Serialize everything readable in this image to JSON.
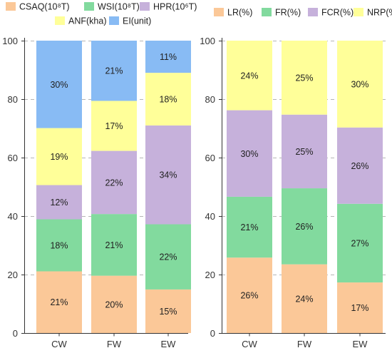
{
  "chart_data": [
    {
      "type": "bar",
      "stacked": true,
      "categories": [
        "CW",
        "FW",
        "EW"
      ],
      "ylim": [
        0,
        100
      ],
      "yticks": [
        0,
        20,
        40,
        60,
        80,
        100
      ],
      "grid": "horizontal dashed",
      "legend_position": "top",
      "series": [
        {
          "name": "CSAQ(10⁸T)",
          "color": "#FBC898",
          "values": [
            21.1,
            19.6,
            14.9
          ],
          "labels": [
            "21%",
            "20%",
            "15%"
          ]
        },
        {
          "name": "WSI(10⁸T)",
          "color": "#82DA9E",
          "values": [
            17.8,
            21.1,
            22.3
          ],
          "labels": [
            "18%",
            "21%",
            "22%"
          ]
        },
        {
          "name": "HPR(10⁶T)",
          "color": "#C6B1DB",
          "values": [
            11.7,
            21.6,
            33.8
          ],
          "labels": [
            "12%",
            "22%",
            "34%"
          ]
        },
        {
          "name": "ANF(kha)",
          "color": "#FFFF99",
          "values": [
            19.5,
            17.1,
            18.0
          ],
          "labels": [
            "19%",
            "17%",
            "18%"
          ]
        },
        {
          "name": "EI(unit)",
          "color": "#88BBF4",
          "values": [
            29.9,
            20.6,
            11.0
          ],
          "labels": [
            "30%",
            "21%",
            "11%"
          ]
        }
      ]
    },
    {
      "type": "bar",
      "stacked": true,
      "categories": [
        "CW",
        "FW",
        "EW"
      ],
      "ylim": [
        0,
        100
      ],
      "yticks": [
        0,
        20,
        40,
        60,
        80,
        100
      ],
      "grid": "horizontal dashed",
      "legend_position": "top",
      "series": [
        {
          "name": "LR(%)",
          "color": "#FBC898",
          "values": [
            25.8,
            23.5,
            17.3
          ],
          "labels": [
            "26%",
            "24%",
            "17%"
          ]
        },
        {
          "name": "FR(%)",
          "color": "#82DA9E",
          "values": [
            20.8,
            26.0,
            26.9
          ],
          "labels": [
            "21%",
            "26%",
            "27%"
          ]
        },
        {
          "name": "FCR(%)",
          "color": "#C6B1DB",
          "values": [
            29.6,
            25.2,
            26.1
          ],
          "labels": [
            "30%",
            "25%",
            "26%"
          ]
        },
        {
          "name": "NRP(%)",
          "color": "#FFFF99",
          "values": [
            23.8,
            25.3,
            29.7
          ],
          "labels": [
            "24%",
            "25%",
            "30%"
          ]
        }
      ]
    }
  ]
}
